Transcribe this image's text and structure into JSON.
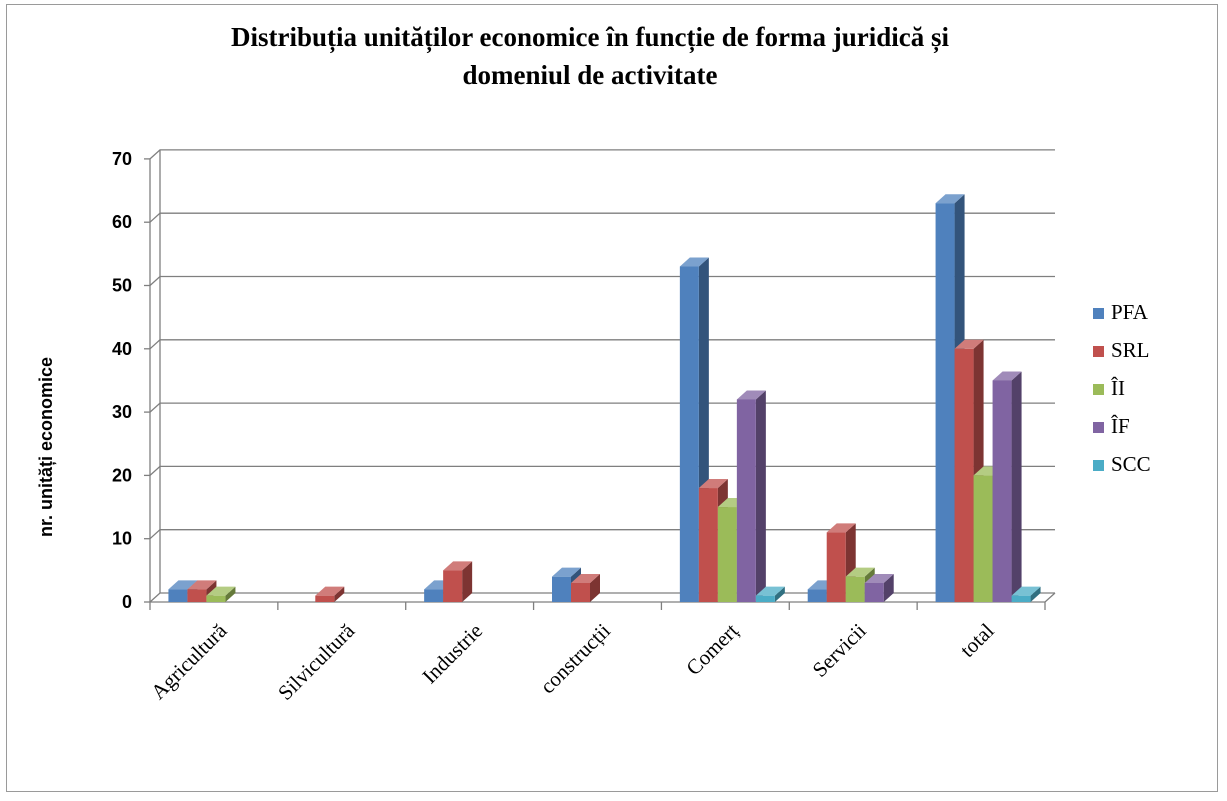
{
  "chart_data": {
    "type": "bar",
    "title_lines": [
      "Distribuția unităților economice în funcție de forma juridică și",
      "domeniul de activitate"
    ],
    "xlabel": "",
    "ylabel": "nr. unități economice",
    "ylim": [
      0,
      70
    ],
    "yticks": [
      "0",
      "10",
      "20",
      "30",
      "40",
      "50",
      "60",
      "70"
    ],
    "grid": true,
    "legend_position": "right",
    "categories": [
      "Agricultură",
      "Silvicultură",
      "Industrie",
      "construcții",
      "Comerț",
      "Servicii",
      "total"
    ],
    "series": [
      {
        "name": "PFA",
        "color": "#4F81BD",
        "values": [
          2,
          0,
          2,
          4,
          53,
          2,
          63
        ]
      },
      {
        "name": "SRL",
        "color": "#C0504D",
        "values": [
          2,
          1,
          5,
          3,
          18,
          11,
          40
        ]
      },
      {
        "name": "ÎI",
        "color": "#9BBB59",
        "values": [
          1,
          0,
          0,
          0,
          15,
          4,
          20
        ]
      },
      {
        "name": "ÎF",
        "color": "#8064A2",
        "values": [
          0,
          0,
          0,
          0,
          32,
          3,
          35
        ]
      },
      {
        "name": "SCC",
        "color": "#4BACC6",
        "values": [
          0,
          0,
          0,
          0,
          1,
          0,
          1
        ]
      }
    ]
  }
}
